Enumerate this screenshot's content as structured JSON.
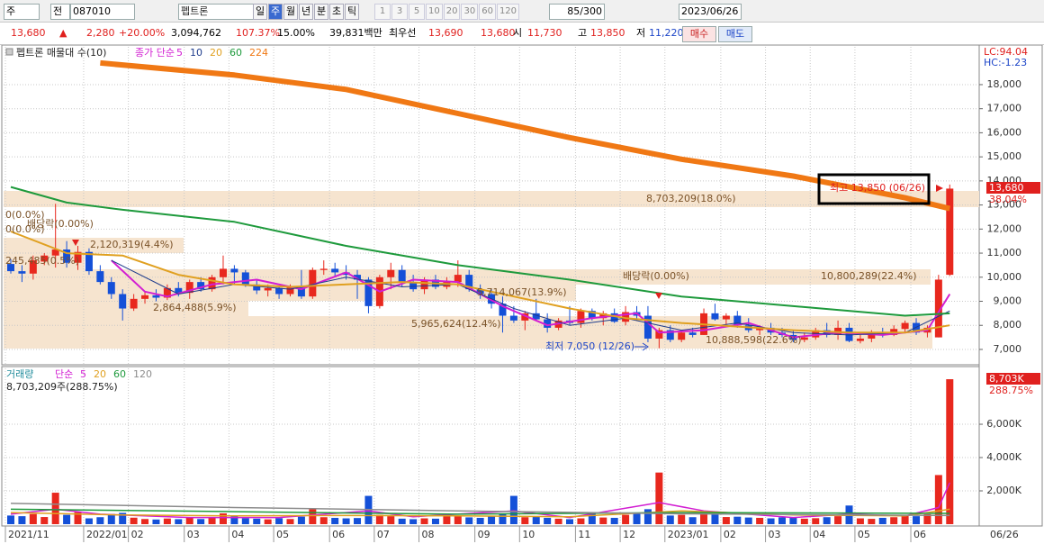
{
  "toolbar": {
    "market": "주",
    "prev": "전",
    "code": "087010",
    "name": "펩트론",
    "periods": [
      "일",
      "주",
      "월",
      "년",
      "분",
      "초",
      "틱"
    ],
    "intervals": [
      "1",
      "3",
      "5",
      "10",
      "20",
      "30",
      "60",
      "120"
    ],
    "count": "85/300",
    "date": "2023/06/26"
  },
  "quote": {
    "price": "13,680",
    "arrow": "▲",
    "change": "2,280",
    "change_pct": "+20.00%",
    "volume": "3,094,762",
    "volume_ratio": "107.37%",
    "turnover": "15.00%",
    "amount": "39,831백만",
    "best_label": "최우선",
    "ask": "13,690",
    "bid": "13,680",
    "open_label": "시",
    "open": "11,730",
    "high_label": "고",
    "high": "13,850",
    "low_label": "저",
    "low": "11,220",
    "buy": "매수",
    "sell": "매도"
  },
  "chart_data": [
    {
      "type": "candlestick",
      "title": "펩트론 매물대 수(10)",
      "legend_title": "종가 단순",
      "categories": [
        "2021/11",
        null,
        null,
        null,
        null,
        null,
        null,
        "2022/01",
        null,
        null,
        null,
        "02",
        null,
        null,
        null,
        null,
        "03",
        null,
        null,
        null,
        "04",
        null,
        null,
        null,
        "05",
        null,
        null,
        null,
        null,
        "06",
        null,
        null,
        null,
        "07",
        null,
        null,
        null,
        "08",
        null,
        null,
        null,
        null,
        "09",
        null,
        null,
        null,
        "10",
        null,
        null,
        null,
        null,
        "11",
        null,
        null,
        null,
        "12",
        null,
        null,
        null,
        "2023/01",
        null,
        null,
        null,
        null,
        "02",
        null,
        null,
        null,
        "03",
        null,
        null,
        null,
        "04",
        null,
        null,
        null,
        "05",
        null,
        null,
        null,
        null,
        "06",
        null,
        null,
        null
      ],
      "open": [
        10550,
        10250,
        10150,
        10650,
        10900,
        11150,
        10600,
        11050,
        10250,
        9800,
        9300,
        8700,
        9100,
        9250,
        9150,
        9550,
        9350,
        9800,
        9500,
        10000,
        10350,
        10200,
        9700,
        9450,
        9550,
        9300,
        9600,
        9200,
        10300,
        10350,
        10200,
        10100,
        9900,
        8800,
        10000,
        10300,
        9800,
        9500,
        9900,
        9600,
        9800,
        10100,
        9500,
        9300,
        8900,
        8400,
        8200,
        8500,
        8250,
        7900,
        8200,
        8100,
        8600,
        8300,
        8500,
        8150,
        8550,
        8400,
        7450,
        7800,
        7400,
        7700,
        7600,
        8500,
        8250,
        8400,
        8000,
        7800,
        7900,
        7700,
        7600,
        7400,
        7500,
        7800,
        7600,
        7900,
        7350,
        7450,
        7700,
        7600,
        7850,
        8100,
        7700,
        7500,
        10100
      ],
      "high": [
        10750,
        10500,
        10900,
        11000,
        13050,
        11500,
        11300,
        11200,
        10500,
        10000,
        9500,
        9300,
        9400,
        9500,
        9700,
        9800,
        9900,
        10000,
        10100,
        10900,
        10500,
        10300,
        9900,
        9700,
        9650,
        9700,
        10300,
        10400,
        10700,
        10600,
        10500,
        10300,
        10000,
        10100,
        10600,
        10500,
        10100,
        10000,
        10100,
        10000,
        10700,
        10300,
        9700,
        9500,
        9200,
        8800,
        8600,
        9100,
        8500,
        8300,
        8800,
        8700,
        8700,
        8600,
        8700,
        8800,
        8800,
        8800,
        7900,
        8000,
        7800,
        7900,
        8700,
        8900,
        8500,
        8600,
        8300,
        8000,
        8100,
        7900,
        7800,
        7700,
        7900,
        8100,
        8200,
        8100,
        7600,
        7800,
        7900,
        8000,
        8200,
        8300,
        8000,
        10100,
        13850
      ],
      "low": [
        10150,
        9800,
        9900,
        10500,
        10400,
        10400,
        10300,
        10100,
        9700,
        9100,
        8200,
        8600,
        8900,
        9000,
        9050,
        9200,
        9100,
        9400,
        9400,
        9700,
        9700,
        9600,
        9300,
        9200,
        9100,
        9200,
        9100,
        9100,
        10100,
        10000,
        9900,
        9100,
        8500,
        8700,
        9500,
        9600,
        9400,
        9300,
        9500,
        9500,
        9600,
        9400,
        9100,
        8700,
        7700,
        8100,
        7800,
        8200,
        7700,
        7800,
        8000,
        7900,
        8200,
        8000,
        8100,
        8000,
        8200,
        7300,
        7050,
        7300,
        7300,
        7500,
        7600,
        8200,
        8000,
        7900,
        7700,
        7600,
        7600,
        7500,
        7300,
        7300,
        7400,
        7500,
        7400,
        7300,
        7250,
        7300,
        7500,
        7550,
        7700,
        7600,
        7500,
        7500,
        10050
      ],
      "close": [
        10250,
        10150,
        10700,
        10900,
        11150,
        10600,
        11050,
        10250,
        9800,
        9300,
        8700,
        9100,
        9250,
        9150,
        9550,
        9350,
        9800,
        9500,
        10000,
        10350,
        10200,
        9700,
        9450,
        9550,
        9300,
        9600,
        9200,
        10300,
        10350,
        10200,
        10100,
        9900,
        8800,
        10000,
        10300,
        9800,
        9500,
        9900,
        9600,
        9800,
        10100,
        9500,
        9300,
        8900,
        8400,
        8200,
        8500,
        8250,
        7900,
        8200,
        8100,
        8600,
        8300,
        8500,
        8150,
        8550,
        8400,
        7450,
        7800,
        7400,
        7700,
        7600,
        8500,
        8250,
        8400,
        8000,
        7800,
        7900,
        7700,
        7600,
        7400,
        7500,
        7800,
        7600,
        7900,
        7350,
        7450,
        7700,
        7600,
        7850,
        8100,
        7700,
        7900,
        9900,
        13680
      ],
      "up_color": "#e8281e",
      "down_color": "#1450d8",
      "series": [
        {
          "name": "5",
          "color": "#d21ed2",
          "width": 2,
          "x": [
            9,
            12,
            14,
            18,
            22,
            26,
            30,
            33,
            36,
            40,
            44,
            48,
            52,
            56,
            58,
            62,
            66,
            70,
            74,
            78,
            82,
            84
          ],
          "values": [
            10700,
            9400,
            9200,
            9700,
            9900,
            9500,
            10200,
            9400,
            9900,
            9800,
            8800,
            8000,
            8300,
            8500,
            7700,
            7800,
            8100,
            7500,
            7700,
            7600,
            7800,
            9300
          ]
        },
        {
          "name": "10",
          "color": "#1e3c8c",
          "width": 1,
          "x": [
            9,
            15,
            20,
            25,
            30,
            35,
            40,
            45,
            50,
            55,
            60,
            65,
            70,
            75,
            80,
            84
          ],
          "values": [
            10700,
            9300,
            9700,
            9500,
            10000,
            9600,
            9700,
            8700,
            8000,
            8300,
            7800,
            8100,
            7700,
            7600,
            7700,
            8600
          ]
        },
        {
          "name": "20",
          "color": "#e0a020",
          "width": 2,
          "x": [
            0,
            5,
            10,
            15,
            20,
            25,
            30,
            35,
            40,
            45,
            50,
            55,
            60,
            65,
            70,
            75,
            80,
            84
          ],
          "values": [
            11900,
            11000,
            10900,
            10100,
            9700,
            9600,
            9700,
            9800,
            9700,
            9200,
            8700,
            8300,
            8100,
            7950,
            7800,
            7700,
            7700,
            8000
          ]
        },
        {
          "name": "60",
          "color": "#1e9a3c",
          "width": 2,
          "x": [
            0,
            5,
            10,
            20,
            30,
            40,
            50,
            60,
            70,
            80,
            84
          ],
          "values": [
            13750,
            13100,
            12800,
            12300,
            11300,
            10500,
            9900,
            9200,
            8800,
            8400,
            8500
          ]
        },
        {
          "name": "224",
          "color": "#f07814",
          "width": 6,
          "x": [
            8,
            20,
            30,
            40,
            50,
            60,
            70,
            80,
            84
          ],
          "values": [
            18900,
            18400,
            17800,
            16800,
            15800,
            14900,
            14200,
            13300,
            12850
          ]
        }
      ],
      "ylim": [
        6400,
        19570
      ],
      "yticks": [
        {
          "value": 7000,
          "label": "7,000"
        },
        {
          "value": 8000,
          "label": "8,000"
        },
        {
          "value": 9000,
          "label": "9,000"
        },
        {
          "value": 10000,
          "label": "10,000"
        },
        {
          "value": 11000,
          "label": "11,000"
        },
        {
          "value": 12000,
          "label": "12,000"
        },
        {
          "value": 13000,
          "label": "13,000"
        },
        {
          "value": 14000,
          "label": "14,000"
        },
        {
          "value": 15000,
          "label": "15,000"
        },
        {
          "value": 16000,
          "label": "16,000"
        },
        {
          "value": 17000,
          "label": "17,000"
        },
        {
          "value": 18000,
          "label": "18,000"
        }
      ],
      "grid": true,
      "profile_labels": [
        "8,703,209(18.0%)",
        "2,120,319(4.4%)",
        "245,485(0.5%)",
        "10,800,289(22.4%)",
        "5,714,067(13.9%)",
        "2,864,488(5.9%)",
        "5,965,624(12.4%)",
        "10,888,598(22.6%)"
      ],
      "zero_labels": [
        "0(0.0%)",
        "0(0.0%)"
      ],
      "dividend_labels": [
        "배당락(0.00%)",
        "배당락(0.00%)"
      ],
      "low_label": "최저 7,050 (12/26)",
      "high_label": "최고 13,850 (06/26)",
      "lc_label": "LC:94.04",
      "hc_label": "HC:-1.23",
      "last_label": "13,680",
      "last_change": "38.04%"
    },
    {
      "type": "bar",
      "title": "거래량",
      "legend_title": "단순",
      "values": [
        520000,
        480000,
        610000,
        430000,
        1890000,
        560000,
        720000,
        350000,
        420000,
        610000,
        680000,
        390000,
        310000,
        280000,
        340000,
        300000,
        420000,
        310000,
        380000,
        650000,
        520000,
        360000,
        330000,
        290000,
        360000,
        310000,
        450000,
        900000,
        420000,
        380000,
        350000,
        370000,
        1700000,
        560000,
        480000,
        330000,
        300000,
        350000,
        330000,
        480000,
        520000,
        410000,
        380000,
        490000,
        610000,
        1700000,
        420000,
        450000,
        380000,
        330000,
        300000,
        350000,
        690000,
        400000,
        380000,
        560000,
        640000,
        900000,
        3100000,
        520000,
        560000,
        420000,
        800000,
        720000,
        430000,
        450000,
        400000,
        380000,
        350000,
        410000,
        380000,
        330000,
        360000,
        420000,
        480000,
        1120000,
        350000,
        320000,
        380000,
        420000,
        510000,
        480000,
        600000,
        2950000,
        8703209
      ],
      "series": [
        {
          "name": "5",
          "color": "#d21ed2",
          "x": [
            0,
            4,
            8,
            16,
            24,
            32,
            36,
            45,
            50,
            58,
            62,
            70,
            75,
            80,
            83,
            84
          ],
          "values": [
            600000,
            900000,
            600000,
            400000,
            400000,
            800000,
            450000,
            800000,
            400000,
            1300000,
            800000,
            400000,
            600000,
            500000,
            1000000,
            2500000
          ]
        },
        {
          "name": "20",
          "color": "#e0a020",
          "x": [
            0,
            10,
            20,
            30,
            40,
            50,
            60,
            70,
            80,
            84
          ],
          "values": [
            700000,
            550000,
            500000,
            520000,
            500000,
            450000,
            800000,
            550000,
            500000,
            900000
          ]
        },
        {
          "name": "60",
          "color": "#1e9a3c",
          "x": [
            0,
            20,
            40,
            60,
            84
          ],
          "values": [
            900000,
            750000,
            600000,
            700000,
            650000
          ]
        },
        {
          "name": "120",
          "color": "#8c8c8c",
          "x": [
            0,
            20,
            40,
            60,
            84
          ],
          "values": [
            1250000,
            1000000,
            800000,
            620000,
            520000
          ]
        }
      ],
      "ylim": [
        0,
        9300000
      ],
      "yticks": [
        {
          "value": 2000000,
          "label": "2,000K"
        },
        {
          "value": 4000000,
          "label": "4,000K"
        },
        {
          "value": 6000000,
          "label": "6,000K"
        }
      ],
      "grid": true,
      "value_label": "8,703,209주(288.75%)",
      "last_label": "8,703K",
      "last_change": "288.75%",
      "x_end_label": "06/26"
    }
  ]
}
